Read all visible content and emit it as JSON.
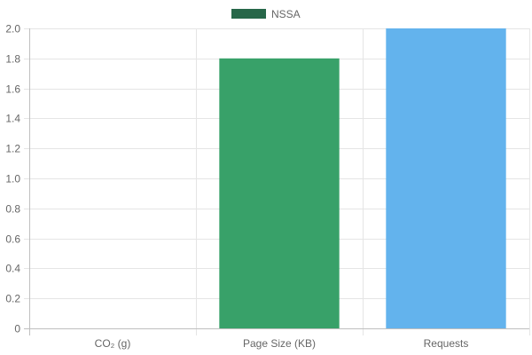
{
  "chart_data": {
    "type": "bar",
    "categories": [
      "CO₂ (g)",
      "Page Size (KB)",
      "Requests"
    ],
    "series": [
      {
        "name": "NSSA",
        "values": [
          0,
          1.8,
          2.0
        ]
      }
    ],
    "bar_colors": [
      "#38a169",
      "#38a169",
      "#63b3ed"
    ],
    "legend": {
      "label": "NSSA",
      "color": "#276749",
      "placement": "top-center"
    },
    "ylim": [
      0,
      2.0
    ],
    "yticks": [
      "0",
      "0.2",
      "0.4",
      "0.6",
      "0.8",
      "1.0",
      "1.2",
      "1.4",
      "1.6",
      "1.8",
      "2.0"
    ],
    "grid": true
  }
}
